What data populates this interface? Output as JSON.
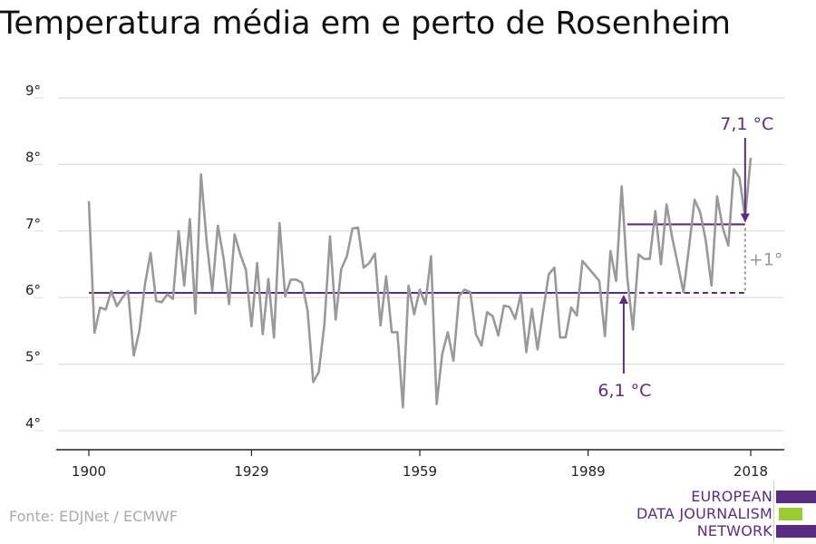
{
  "title": "Temperatura média em e perto de Rosenheim",
  "source": "Fonte: EDJNet / ECMWF",
  "logo": {
    "line1": "EUROPEAN",
    "line2": "DATA JOURNALISM",
    "line3": "NETWORK",
    "color_purple": "#5b2c83",
    "color_green": "#99cc33"
  },
  "colors": {
    "line": "#999999",
    "accent": "#5b2c83",
    "grid": "#dddddd"
  },
  "chart_data": {
    "type": "line",
    "title": "Temperatura média em e perto de Rosenheim",
    "xlabel": "",
    "ylabel": "",
    "xlim": [
      1900,
      2018
    ],
    "ylim": [
      4,
      9
    ],
    "x_ticks": [
      1900,
      1929,
      1959,
      1989,
      2018
    ],
    "y_ticks": [
      4,
      5,
      6,
      7,
      8,
      9
    ],
    "y_tick_suffix": "°",
    "grid": true,
    "series": [
      {
        "x": [
          1900,
          1901,
          1902,
          1903,
          1904,
          1905,
          1906,
          1907,
          1908,
          1909,
          1910,
          1911,
          1912,
          1913,
          1914,
          1915,
          1916,
          1917,
          1918,
          1919,
          1920,
          1921,
          1922,
          1923,
          1924,
          1925,
          1926,
          1927,
          1928,
          1929,
          1930,
          1931,
          1932,
          1933,
          1934,
          1935,
          1936,
          1937,
          1938,
          1939,
          1940,
          1941,
          1942,
          1943,
          1944,
          1945,
          1946,
          1947,
          1948,
          1949,
          1950,
          1951,
          1952,
          1953,
          1954,
          1955,
          1956,
          1957,
          1958,
          1959,
          1960,
          1961,
          1962,
          1963,
          1964,
          1965,
          1966,
          1967,
          1968,
          1969,
          1970,
          1971,
          1972,
          1973,
          1974,
          1975,
          1976,
          1977,
          1978,
          1979,
          1980,
          1981,
          1982,
          1983,
          1984,
          1985,
          1986,
          1987,
          1988,
          1989,
          1990,
          1991,
          1992,
          1993,
          1994,
          1995,
          1996,
          1997,
          1998,
          1999,
          2000,
          2001,
          2002,
          2003,
          2004,
          2005,
          2006,
          2007,
          2008,
          2009,
          2010,
          2011,
          2012,
          2013,
          2014,
          2015,
          2016,
          2017,
          2018
        ],
        "values": [
          7.45,
          5.47,
          5.85,
          5.82,
          6.1,
          5.87,
          6.0,
          6.1,
          5.13,
          5.5,
          6.2,
          6.67,
          5.95,
          5.93,
          6.05,
          5.98,
          7.0,
          6.18,
          7.18,
          5.76,
          7.85,
          6.85,
          6.1,
          7.08,
          6.6,
          5.9,
          6.95,
          6.65,
          6.42,
          5.57,
          6.52,
          5.45,
          6.28,
          5.4,
          7.12,
          6.02,
          6.27,
          6.27,
          6.22,
          5.8,
          4.73,
          4.88,
          5.6,
          6.92,
          5.67,
          6.43,
          6.62,
          7.04,
          7.05,
          6.45,
          6.52,
          6.66,
          5.58,
          6.32,
          5.48,
          5.48,
          4.35,
          6.18,
          5.75,
          6.12,
          5.9,
          6.62,
          4.4,
          5.15,
          5.48,
          5.05,
          6.02,
          6.12,
          6.08,
          5.45,
          5.28,
          5.78,
          5.72,
          5.43,
          5.88,
          5.86,
          5.68,
          6.05,
          5.18,
          5.83,
          5.22,
          5.8,
          6.35,
          6.45,
          5.4,
          5.4,
          5.85,
          5.73,
          6.55,
          6.45,
          6.35,
          6.25,
          5.42,
          6.7,
          6.25,
          7.67,
          6.3,
          5.52,
          6.65,
          6.58,
          6.58,
          7.3,
          6.5,
          7.4,
          6.9,
          6.5,
          6.08,
          6.75,
          7.47,
          7.28,
          6.85,
          6.18,
          7.52,
          7.05,
          6.78,
          7.93,
          7.8,
          7.2,
          8.1
        ]
      }
    ],
    "reference_lines": [
      {
        "label": "6,1 °C",
        "value": 6.07,
        "from": 1900,
        "to": 1996,
        "dashed_to": 2017
      },
      {
        "label": "7,1 °C",
        "value": 7.1,
        "from": 1996,
        "to": 2017
      }
    ],
    "difference_label": "+1°"
  }
}
